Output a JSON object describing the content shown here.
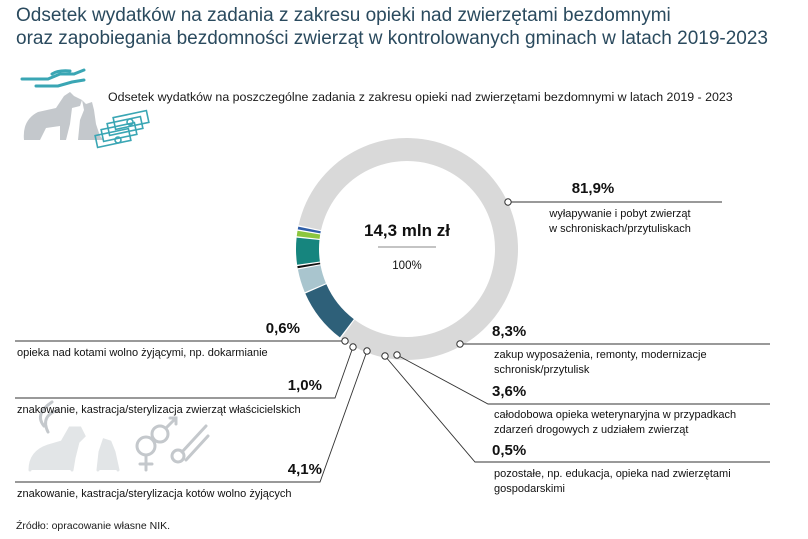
{
  "title": {
    "line1": "Odsetek wydatków na zadania z zakresu opieki nad zwierzętami bezdomnymi",
    "line2": "oraz zapobiegania bezdomności zwierząt w kontrolowanych gminach w latach 2019-2023"
  },
  "source": "Źródło: opracowanie własne NIK.",
  "colors": {
    "gray": "#d9d9d9",
    "dark_teal": "#2e6079",
    "light_blue_gray": "#a9c5ce",
    "black": "#111111",
    "teal": "#16857e",
    "light_green": "#8cc63f",
    "blue": "#2f5ea8",
    "title": "#2a4a5e",
    "icon": "#c4c8cc"
  },
  "icons": [
    "hand-pet-icon",
    "dog-cat-icon",
    "money-stack-icon",
    "pets-gender-scissors-icon"
  ],
  "chart_data": {
    "type": "pie",
    "title": "Odsetek wydatków na poszczególne zadania z zakresu opieki nad zwierzętami bezdomnymi w latach 2019 - 2023",
    "center_total": "14,3 mln zł",
    "center_percent": "100%",
    "slices": [
      {
        "label_lines": [
          "wyłapywanie i pobyt zwierząt",
          "w schroniskach/przytuliskach"
        ],
        "value": 81.9,
        "display": "81,9%",
        "color": "#d9d9d9"
      },
      {
        "label_lines": [
          "zakup wyposażenia, remonty, modernizacje",
          "schronisk/przytulisk"
        ],
        "value": 8.3,
        "display": "8,3%",
        "color": "#2e6079"
      },
      {
        "label_lines": [
          "całodobowa opieka weterynaryjna w przypadkach",
          "zdarzeń drogowych z udziałem zwierząt"
        ],
        "value": 3.6,
        "display": "3,6%",
        "color": "#a9c5ce"
      },
      {
        "label_lines": [
          "pozostałe, np. edukacja, opieka nad zwierzętami",
          "gospodarskimi"
        ],
        "value": 0.5,
        "display": "0,5%",
        "color": "#111111"
      },
      {
        "label_lines": [
          "znakowanie, kastracja/sterylizacja kotów wolno żyjących"
        ],
        "value": 4.1,
        "display": "4,1%",
        "color": "#16857e"
      },
      {
        "label_lines": [
          "znakowanie, kastracja/sterylizacja zwierząt właścicielskich"
        ],
        "value": 1.0,
        "display": "1,0%",
        "color": "#8cc63f"
      },
      {
        "label_lines": [
          "opieka nad kotami wolno żyjącymi, np. dokarmianie"
        ],
        "value": 0.6,
        "display": "0,6%",
        "color": "#2f5ea8"
      }
    ]
  }
}
